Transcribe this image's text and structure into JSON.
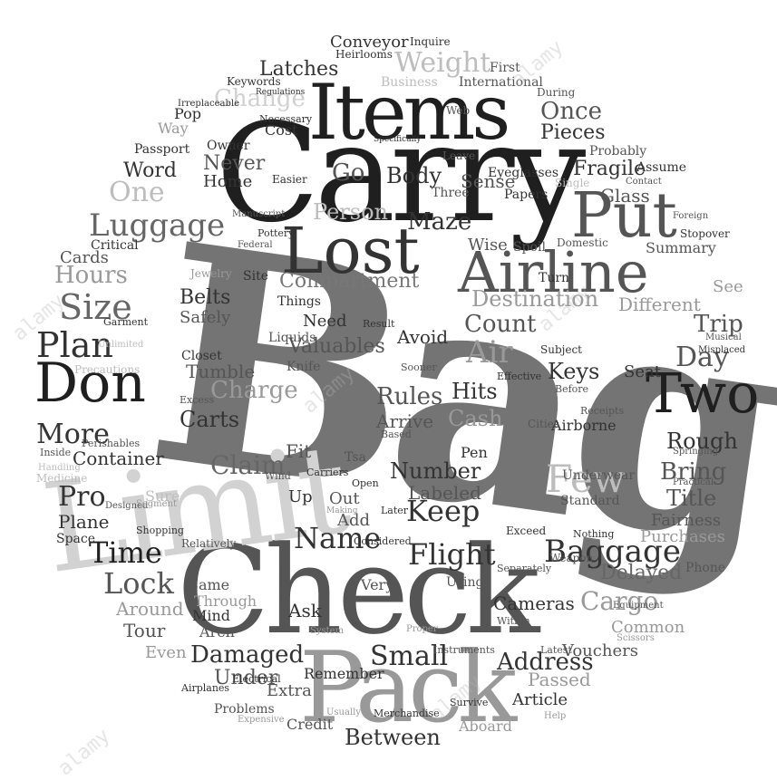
{
  "colors": {
    "dark": "#1f1f1f",
    "mid": "#555555",
    "gray": "#7d7d7d",
    "light": "#bdbdbd",
    "faint": "#d6d6d6",
    "background": "#ffffff"
  },
  "words": {
    "bag": "Bag",
    "carry": "Carry",
    "check": "Check",
    "limit": "Limit",
    "pack": "Pack",
    "items": "Items",
    "lost": "Lost",
    "airline": "Airline",
    "put": "Put",
    "don": "Don",
    "two": "Two",
    "luggage": "Luggage",
    "plan": "Plan",
    "size": "Size",
    "baggage": "Baggage",
    "flight": "Flight",
    "name": "Name",
    "keep": "Keep",
    "weight": "Weight",
    "one": "One",
    "person": "Person",
    "maze": "Maze",
    "claim": "Claim",
    "time": "Time",
    "lock": "Lock",
    "small": "Small",
    "address": "Address",
    "between": "Between",
    "damaged": "Damaged",
    "under": "Under",
    "cargo": "Cargo",
    "delayed": "Delayed",
    "trip": "Trip",
    "day": "Day",
    "few": "Few",
    "rough": "Rough",
    "bring": "Bring",
    "title": "Title",
    "air": "Air",
    "keys": "Keys",
    "hits": "Hits",
    "cash": "Cash",
    "rules": "Rules",
    "number": "Number",
    "labeled": "Labeled",
    "count": "Count",
    "destination": "Destination",
    "compartment": "Compartment",
    "valuables": "Valuables",
    "tumble": "Tumble",
    "charge": "Charge",
    "carts": "Carts",
    "more": "More",
    "hours": "Hours",
    "pro": "Pro",
    "plane": "Plane",
    "container": "Container",
    "around": "Around",
    "tour": "Tour",
    "ask": "Ask",
    "cameras": "Cameras",
    "vouchers": "Vouchers",
    "article": "Article",
    "passed": "Passed",
    "fragile": "Fragile",
    "glass": "Glass",
    "once": "Once",
    "pieces": "Pieces",
    "body": "Body",
    "go": "Go",
    "sense": "Sense",
    "word": "Word",
    "never": "Never",
    "home": "Home",
    "latches": "Latches",
    "change": "Change",
    "conveyor": "Conveyor",
    "belts": "Belts",
    "safely": "Safely",
    "need": "Need",
    "avoid": "Avoid",
    "fit": "Fit",
    "arrive": "Arrive",
    "cards": "Cards",
    "up": "Up",
    "out": "Out",
    "add": "Add",
    "different": "Different",
    "fairness": "Fairness",
    "purchases": "Purchases",
    "common": "Common",
    "summary": "Summary",
    "seat": "Seat",
    "see": "See",
    "remember": "Remember",
    "credit": "Credit",
    "aboard": "Aboard",
    "merchandise": "Merchandise",
    "survive": "Survive",
    "extra": "Extra",
    "even": "Even",
    "same": "Same",
    "mind": "Mind",
    "aren": "Aren",
    "through": "Through",
    "very": "Very",
    "using": "Using",
    "within": "Within",
    "airborne": "Airborne",
    "pen": "Pen",
    "open": "Open",
    "exceed": "Exceed",
    "underwear": "Underwear",
    "standard": "Standard",
    "critical": "Critical",
    "passport": "Passport",
    "pop": "Pop",
    "way": "Way",
    "cost": "Cost",
    "web": "Web",
    "leave": "Leave",
    "easier": "Easier",
    "three": "Three",
    "eyeglasses": "Eyeglasses",
    "papers": "Papers",
    "first": "First",
    "international": "International",
    "inquire": "Inquire",
    "heirlooms": "Heirlooms",
    "keywords": "Keywords",
    "business": "Business",
    "during": "During",
    "owner": "Owner",
    "necessary": "Necessary",
    "probably": "Probably",
    "assume": "Assume",
    "wise": "Wise",
    "spoil": "Spoil",
    "domestic": "Domestic",
    "turn": "Turn",
    "stopover": "Stopover",
    "site": "Site",
    "pottery": "Pottery",
    "jewelry": "Jewelry",
    "things": "Things",
    "liquids": "Liquids",
    "result": "Result",
    "subject": "Subject",
    "knife": "Knife",
    "closet": "Closet",
    "garment": "Garment",
    "medicine": "Medicine",
    "inside": "Inside",
    "wind": "Wind",
    "carriers": "Carriers",
    "based": "Based",
    "cities": "Cities",
    "tsa": "Tsa",
    "later": "Later",
    "considered": "Considered",
    "separately": "Separately",
    "weapon": "Weapon",
    "nothing": "Nothing",
    "phone": "Phone",
    "relatively": "Relatively",
    "shopping": "Shopping",
    "space": "Space",
    "airplanes": "Airplanes",
    "problems": "Problems",
    "electrical": "Electrical",
    "instruments": "Instruments",
    "latest": "Latest",
    "effective": "Effective",
    "before": "Before",
    "receipts": "Receipts",
    "sooner": "Sooner",
    "excess": "Excess",
    "precautions": "Precautions",
    "perishables": "Perishables",
    "handling": "Handling",
    "designed": "Designed",
    "sure": "Sure",
    "practical": "Practical",
    "springing": "Springing",
    "misplaced": "Misplaced",
    "musical": "Musical",
    "irreplaceable": "Irreplaceable",
    "regulations": "Regulations",
    "specifically": "Specifically",
    "manuscript": "Manuscript",
    "federal": "Federal",
    "contact": "Contact",
    "single": "Single",
    "foreign": "Foreign",
    "equipment": "Equipment",
    "scissors": "Scissors",
    "expensive": "Expensive",
    "usually": "Usually",
    "help": "Help",
    "proper": "Proper",
    "system": "System",
    "unlimited": "Unlimited",
    "segment": "Segment",
    "making": "Making"
  },
  "watermark": {
    "text": "alamy"
  }
}
